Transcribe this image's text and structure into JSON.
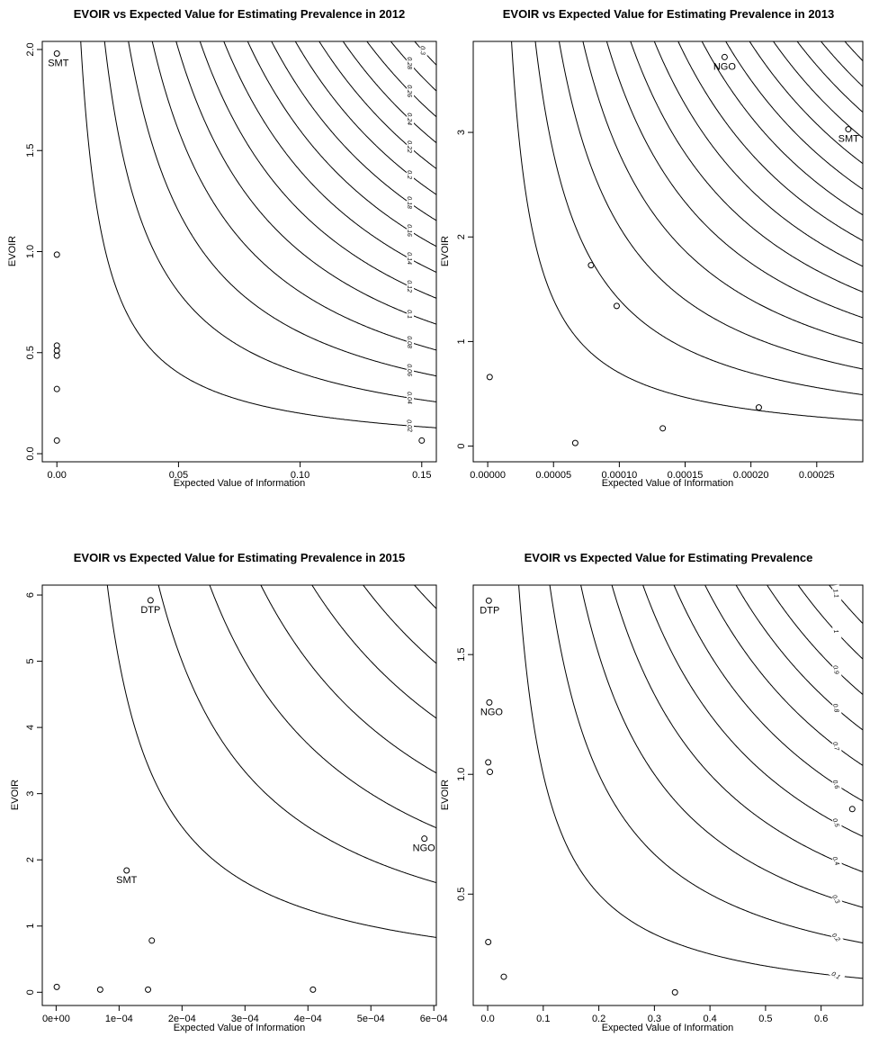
{
  "chart_data": [
    {
      "type": "scatter",
      "title": "EVOIR vs Expected Value for Estimating Prevalence in 2012",
      "xlabel": "Expected Value of Information",
      "ylabel": "EVOIR",
      "xlim": [
        -0.006,
        0.156
      ],
      "ylim": [
        -0.04,
        2.04
      ],
      "x_ticks": [
        {
          "v": 0.0,
          "label": "0.00"
        },
        {
          "v": 0.05,
          "label": "0.05"
        },
        {
          "v": 0.1,
          "label": "0.10"
        },
        {
          "v": 0.15,
          "label": "0.15"
        }
      ],
      "y_ticks": [
        {
          "v": 0.0,
          "label": "0.0"
        },
        {
          "v": 0.5,
          "label": "0.5"
        },
        {
          "v": 1.0,
          "label": "1.0"
        },
        {
          "v": 1.5,
          "label": "1.5"
        },
        {
          "v": 2.0,
          "label": "2.0"
        }
      ],
      "points": [
        {
          "x": 0.0,
          "y": 1.98,
          "label": "SMT"
        },
        {
          "x": 0.0,
          "y": 0.985,
          "label": ""
        },
        {
          "x": 0.0,
          "y": 0.535,
          "label": ""
        },
        {
          "x": 0.0,
          "y": 0.51,
          "label": ""
        },
        {
          "x": 0.0,
          "y": 0.485,
          "label": ""
        },
        {
          "x": 0.0,
          "y": 0.32,
          "label": ""
        },
        {
          "x": 0.0,
          "y": 0.065,
          "label": ""
        },
        {
          "x": 0.15,
          "y": 0.065,
          "label": ""
        }
      ],
      "contours": [
        {
          "level": 0.02,
          "label": "0.02"
        },
        {
          "level": 0.04,
          "label": "0.04"
        },
        {
          "level": 0.06,
          "label": "0.06"
        },
        {
          "level": 0.08,
          "label": "0.08"
        },
        {
          "level": 0.1,
          "label": "0.1"
        },
        {
          "level": 0.12,
          "label": "0.12"
        },
        {
          "level": 0.14,
          "label": "0.14"
        },
        {
          "level": 0.16,
          "label": "0.16"
        },
        {
          "level": 0.18,
          "label": "0.18"
        },
        {
          "level": 0.2,
          "label": "0.2"
        },
        {
          "level": 0.22,
          "label": "0.22"
        },
        {
          "level": 0.24,
          "label": "0.24"
        },
        {
          "level": 0.26,
          "label": "0.26"
        },
        {
          "level": 0.28,
          "label": "0.28"
        },
        {
          "level": 0.3,
          "label": "0.3"
        }
      ],
      "grid": false,
      "legend": "none"
    },
    {
      "type": "scatter",
      "title": "EVOIR vs Expected Value for Estimating Prevalence in 2013",
      "xlabel": "Expected Value of Information",
      "ylabel": "EVOIR",
      "xlim": [
        -1.1e-05,
        0.000285
      ],
      "ylim": [
        -0.15,
        3.87
      ],
      "x_ticks": [
        {
          "v": 0.0,
          "label": "0.00000"
        },
        {
          "v": 5e-05,
          "label": "0.00005"
        },
        {
          "v": 0.0001,
          "label": "0.00010"
        },
        {
          "v": 0.00015,
          "label": "0.00015"
        },
        {
          "v": 0.0002,
          "label": "0.00020"
        },
        {
          "v": 0.00025,
          "label": "0.00025"
        }
      ],
      "y_ticks": [
        {
          "v": 0,
          "label": "0"
        },
        {
          "v": 1,
          "label": "1"
        },
        {
          "v": 2,
          "label": "2"
        },
        {
          "v": 3,
          "label": "3"
        }
      ],
      "points": [
        {
          "x": 0.00018,
          "y": 3.72,
          "label": "NGO"
        },
        {
          "x": 0.000274,
          "y": 3.03,
          "label": "SMT"
        },
        {
          "x": 7.85e-05,
          "y": 1.73,
          "label": ""
        },
        {
          "x": 9.8e-05,
          "y": 1.34,
          "label": ""
        },
        {
          "x": 1.5e-06,
          "y": 0.66,
          "label": ""
        },
        {
          "x": 0.000206,
          "y": 0.37,
          "label": ""
        },
        {
          "x": 0.000133,
          "y": 0.17,
          "label": ""
        },
        {
          "x": 6.65e-05,
          "y": 0.03,
          "label": ""
        }
      ],
      "contours": [
        {
          "level": 7e-05,
          "label": ""
        },
        {
          "level": 0.00014,
          "label": ""
        },
        {
          "level": 0.00021,
          "label": ""
        },
        {
          "level": 0.00028,
          "label": ""
        },
        {
          "level": 0.00035,
          "label": ""
        },
        {
          "level": 0.00042,
          "label": ""
        },
        {
          "level": 0.00049,
          "label": ""
        },
        {
          "level": 0.00056,
          "label": ""
        },
        {
          "level": 0.00063,
          "label": ""
        },
        {
          "level": 0.0007,
          "label": ""
        },
        {
          "level": 0.00077,
          "label": ""
        },
        {
          "level": 0.00084,
          "label": ""
        },
        {
          "level": 0.00091,
          "label": ""
        },
        {
          "level": 0.00098,
          "label": ""
        },
        {
          "level": 0.00105,
          "label": ""
        }
      ],
      "grid": false,
      "legend": "none"
    },
    {
      "type": "scatter",
      "title": "EVOIR vs Expected Value for Estimating Prevalence in 2015",
      "xlabel": "Expected Value of Information",
      "ylabel": "EVOIR",
      "xlim": [
        -2.2e-05,
        0.000604
      ],
      "ylim": [
        -0.2,
        6.15
      ],
      "x_ticks": [
        {
          "v": 0.0,
          "label": "0e+00"
        },
        {
          "v": 0.0001,
          "label": "1e−04"
        },
        {
          "v": 0.0002,
          "label": "2e−04"
        },
        {
          "v": 0.0003,
          "label": "3e−04"
        },
        {
          "v": 0.0004,
          "label": "4e−04"
        },
        {
          "v": 0.0005,
          "label": "5e−04"
        },
        {
          "v": 0.0006,
          "label": "6e−04"
        }
      ],
      "y_ticks": [
        {
          "v": 0,
          "label": "0"
        },
        {
          "v": 1,
          "label": "1"
        },
        {
          "v": 2,
          "label": "2"
        },
        {
          "v": 3,
          "label": "3"
        },
        {
          "v": 4,
          "label": "4"
        },
        {
          "v": 5,
          "label": "5"
        },
        {
          "v": 6,
          "label": "6"
        }
      ],
      "points": [
        {
          "x": 0.00015,
          "y": 5.92,
          "label": "DTP"
        },
        {
          "x": 0.000585,
          "y": 2.32,
          "label": "NGO"
        },
        {
          "x": 0.000112,
          "y": 1.84,
          "label": "SMT"
        },
        {
          "x": 0.000152,
          "y": 0.78,
          "label": ""
        },
        {
          "x": 1e-06,
          "y": 0.08,
          "label": ""
        },
        {
          "x": 7e-05,
          "y": 0.04,
          "label": ""
        },
        {
          "x": 0.000146,
          "y": 0.04,
          "label": ""
        },
        {
          "x": 0.000408,
          "y": 0.04,
          "label": ""
        }
      ],
      "contours": [
        {
          "level": 0.0005,
          "label": ""
        },
        {
          "level": 0.001,
          "label": ""
        },
        {
          "level": 0.0015,
          "label": ""
        },
        {
          "level": 0.002,
          "label": ""
        },
        {
          "level": 0.0025,
          "label": ""
        },
        {
          "level": 0.003,
          "label": ""
        },
        {
          "level": 0.0035,
          "label": ""
        },
        {
          "level": 0.004,
          "label": ""
        },
        {
          "level": 0.0045,
          "label": ""
        },
        {
          "level": 0.005,
          "label": ""
        },
        {
          "level": 0.0055,
          "label": ""
        },
        {
          "level": 0.006,
          "label": ""
        }
      ],
      "grid": false,
      "legend": "none"
    },
    {
      "type": "scatter",
      "title": "EVOIR vs Expected Value for Estimating Prevalence",
      "xlabel": "Expected Value of Information",
      "ylabel": "EVOIR",
      "xlim": [
        -0.026,
        0.675
      ],
      "ylim": [
        0.035,
        1.79
      ],
      "x_ticks": [
        {
          "v": 0.0,
          "label": "0.0"
        },
        {
          "v": 0.1,
          "label": "0.1"
        },
        {
          "v": 0.2,
          "label": "0.2"
        },
        {
          "v": 0.3,
          "label": "0.3"
        },
        {
          "v": 0.4,
          "label": "0.4"
        },
        {
          "v": 0.5,
          "label": "0.5"
        },
        {
          "v": 0.6,
          "label": "0.6"
        }
      ],
      "y_ticks": [
        {
          "v": 0.5,
          "label": "0.5"
        },
        {
          "v": 1.0,
          "label": "1.0"
        },
        {
          "v": 1.5,
          "label": "1.5"
        }
      ],
      "points": [
        {
          "x": 0.002,
          "y": 1.725,
          "label": "DTP"
        },
        {
          "x": 0.003,
          "y": 1.3,
          "label": "NGO"
        },
        {
          "x": 0.001,
          "y": 1.05,
          "label": ""
        },
        {
          "x": 0.004,
          "y": 1.01,
          "label": ""
        },
        {
          "x": 0.656,
          "y": 0.855,
          "label": ""
        },
        {
          "x": 0.001,
          "y": 0.3,
          "label": ""
        },
        {
          "x": 0.029,
          "y": 0.155,
          "label": ""
        },
        {
          "x": 0.337,
          "y": 0.09,
          "label": ""
        }
      ],
      "contours": [
        {
          "level": 0.1,
          "label": "0.1"
        },
        {
          "level": 0.2,
          "label": "0.2"
        },
        {
          "level": 0.3,
          "label": "0.3"
        },
        {
          "level": 0.4,
          "label": "0.4"
        },
        {
          "level": 0.5,
          "label": "0.5"
        },
        {
          "level": 0.6,
          "label": "0.6"
        },
        {
          "level": 0.7,
          "label": "0.7"
        },
        {
          "level": 0.8,
          "label": "0.8"
        },
        {
          "level": 0.9,
          "label": "0.9"
        },
        {
          "level": 1.0,
          "label": "1"
        },
        {
          "level": 1.1,
          "label": "1.1"
        }
      ],
      "grid": false,
      "legend": "none"
    }
  ]
}
